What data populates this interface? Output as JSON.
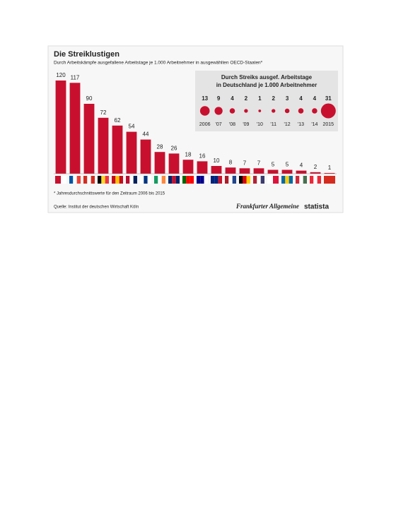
{
  "chart_data": [
    {
      "type": "bar",
      "title": "Die Streiklustigen",
      "subtitle": "Durch Arbeitskämpfe ausgefallene Arbeitstage je 1.000 Arbeitnehmer in ausgewählten OECD-Staaten*",
      "categories": [
        null,
        null,
        null,
        null,
        null,
        null,
        null,
        null,
        null,
        null,
        null,
        null,
        null,
        null,
        null,
        null,
        null,
        null,
        null,
        null
      ],
      "values": [
        120,
        117,
        90,
        72,
        62,
        54,
        44,
        28,
        26,
        18,
        16,
        10,
        8,
        7,
        7,
        5,
        5,
        4,
        2,
        1
      ],
      "color": "#c8102e"
    },
    {
      "type": "bubble",
      "title": "Durch Streiks ausgef. Arbeitstage",
      "subtitle": "in Deutschland je 1.000 Arbeitnehmer",
      "categories": [
        "2006",
        "'07",
        "'08",
        "'09",
        "'10",
        "'11",
        "'12",
        "'13",
        "'14",
        "2015"
      ],
      "values": [
        13,
        9,
        4,
        2,
        1,
        2,
        3,
        4,
        4,
        31
      ],
      "color": "#c8102e"
    }
  ],
  "footnote": "* Jahresdurchschnittswerte für den Zeitraum 2006 bis 2015",
  "source": "Quelle: Institut der deutschen Wirtschaft Köln",
  "logo_faz": "Frankfurter Allgemeine",
  "logo_statista": "statista"
}
